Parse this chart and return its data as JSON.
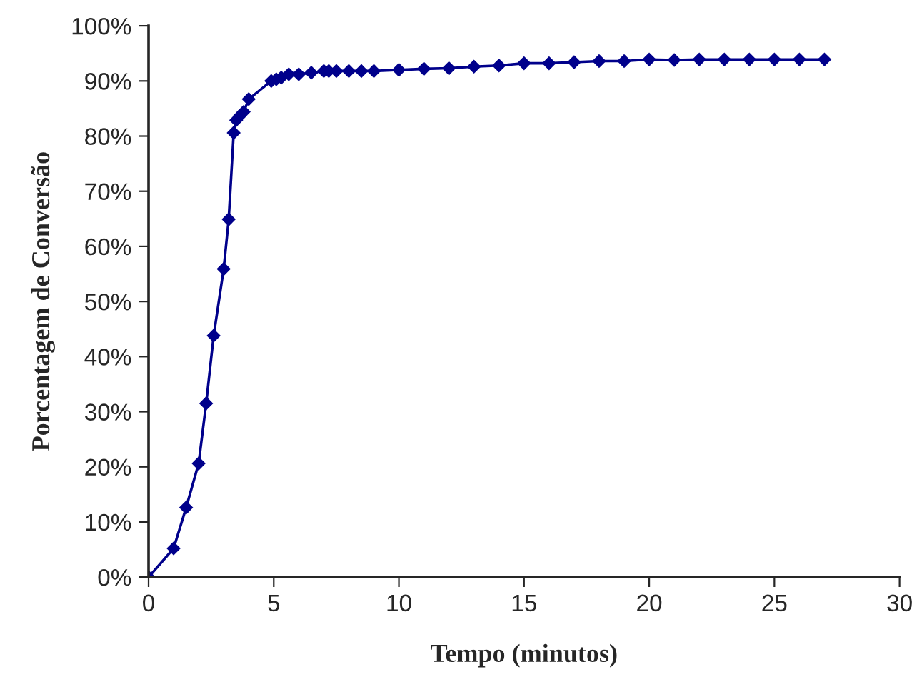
{
  "chart_data": {
    "type": "line",
    "xlabel": "Tempo (minutos)",
    "ylabel": "Porcentagem de Conversão",
    "x": [
      0,
      1.0,
      1.5,
      2.0,
      2.3,
      2.6,
      3.0,
      3.2,
      3.4,
      3.5,
      3.65,
      3.8,
      4.0,
      4.9,
      5.1,
      5.3,
      5.6,
      6.0,
      6.5,
      7.0,
      7.2,
      7.5,
      8.0,
      8.5,
      9.0,
      10,
      11,
      12,
      13,
      14,
      15,
      16,
      17,
      18,
      19,
      20,
      21,
      22,
      23,
      24,
      25,
      26,
      27
    ],
    "series": [
      {
        "color": "#00008b",
        "values": [
          0,
          5.2,
          12.6,
          20.6,
          31.5,
          43.8,
          55.9,
          64.9,
          80.6,
          82.9,
          83.7,
          84.4,
          86.7,
          90.0,
          90.3,
          90.6,
          91.2,
          91.2,
          91.5,
          91.8,
          91.8,
          91.8,
          91.8,
          91.8,
          91.8,
          92.0,
          92.2,
          92.3,
          92.6,
          92.8,
          93.2,
          93.2,
          93.4,
          93.6,
          93.6,
          93.9,
          93.8,
          93.9,
          93.9,
          93.9,
          93.9,
          93.9,
          93.9
        ]
      }
    ],
    "xlim": [
      0,
      30
    ],
    "xticks": [
      0,
      5,
      10,
      15,
      20,
      25,
      30
    ],
    "ylim": [
      0,
      100
    ],
    "yticks": [
      {
        "value": 0,
        "label": "0%"
      },
      {
        "value": 10,
        "label": "10%"
      },
      {
        "value": 20,
        "label": "20%"
      },
      {
        "value": 30,
        "label": "30%"
      },
      {
        "value": 40,
        "label": "40%"
      },
      {
        "value": 50,
        "label": "50%"
      },
      {
        "value": 60,
        "label": "60%"
      },
      {
        "value": 70,
        "label": "70%"
      },
      {
        "value": 80,
        "label": "80%"
      },
      {
        "value": 90,
        "label": "90%"
      },
      {
        "value": 100,
        "label": "100%"
      }
    ],
    "grid": false,
    "marker": "diamond",
    "line_style": "solid"
  }
}
